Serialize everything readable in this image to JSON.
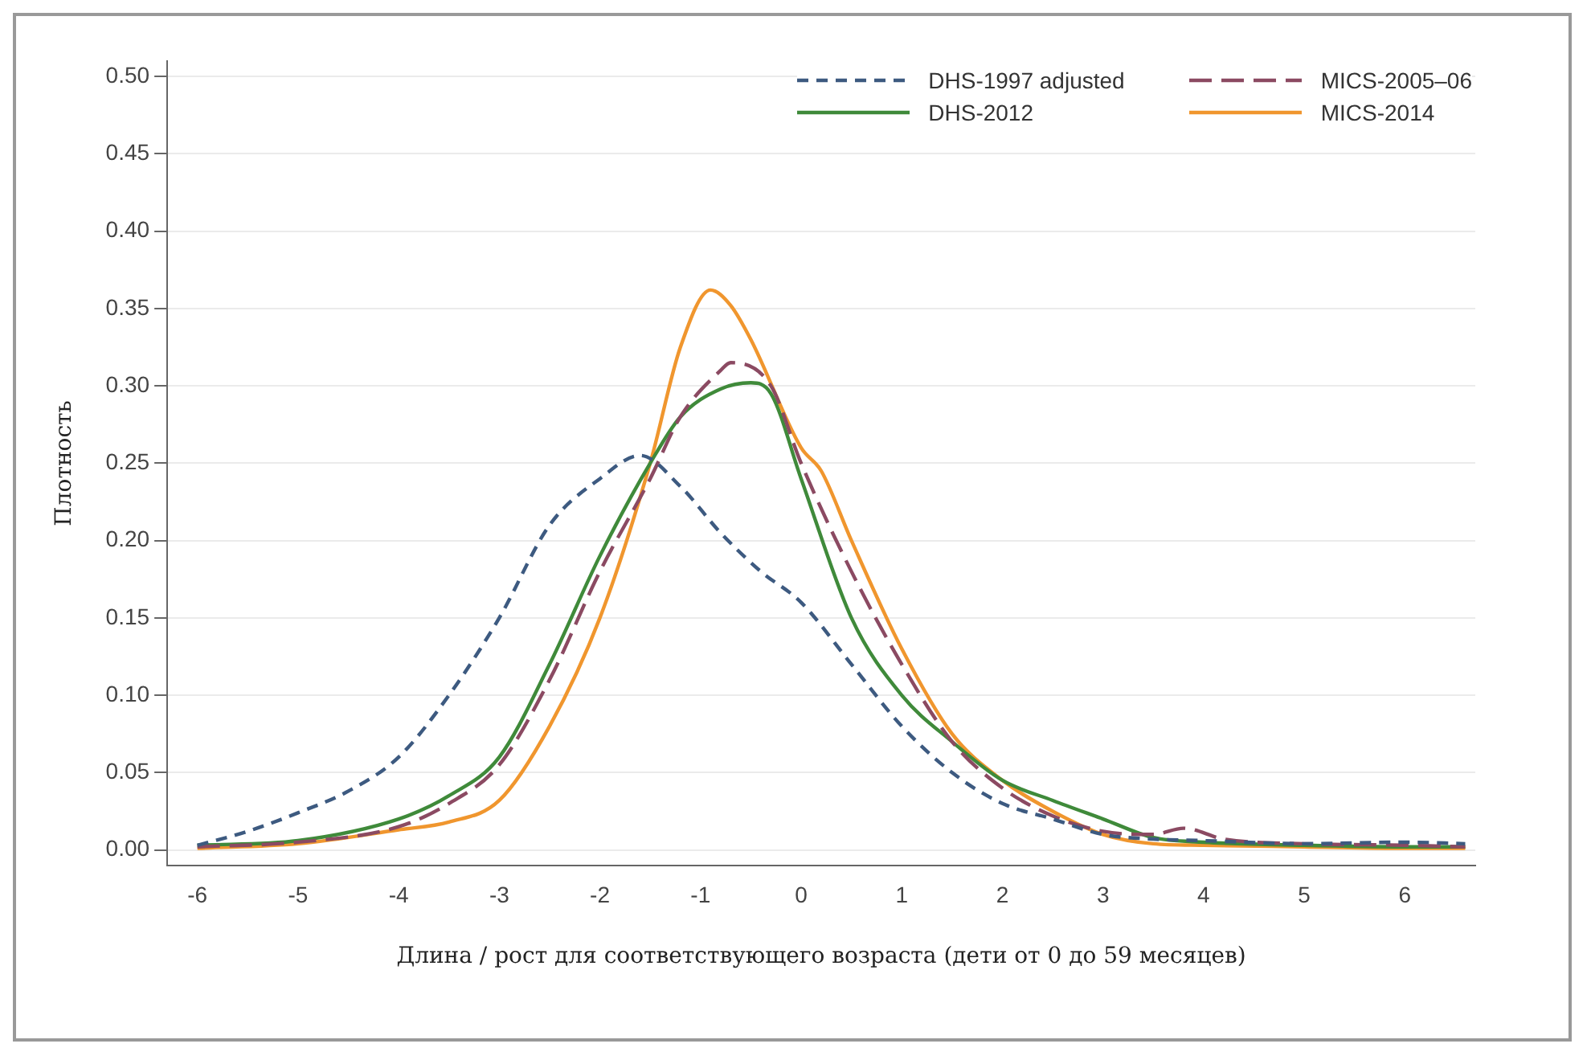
{
  "chart_data": {
    "type": "line",
    "xlabel": "Длина / рост для соответствующего возраста (дети от 0 до 59 месяцев)",
    "ylabel": "Плотность",
    "xlim": [
      -6.3,
      6.7
    ],
    "xticks": [
      -6,
      -5,
      -4,
      -3,
      -2,
      -1,
      0,
      1,
      2,
      3,
      4,
      5,
      6
    ],
    "ylim": [
      -0.01,
      0.51
    ],
    "yticks": [
      {
        "value": 0,
        "label": "0.00"
      },
      {
        "value": 0.05,
        "label": "0.05"
      },
      {
        "value": 0.1,
        "label": "0.10"
      },
      {
        "value": 0.15,
        "label": "0.15"
      },
      {
        "value": 0.2,
        "label": "0.20"
      },
      {
        "value": 0.25,
        "label": "0.25"
      },
      {
        "value": 0.3,
        "label": "0.30"
      },
      {
        "value": 0.35,
        "label": "0.35"
      },
      {
        "value": 0.4,
        "label": "0.40"
      },
      {
        "value": 0.45,
        "label": "0.45"
      },
      {
        "value": 0.5,
        "label": "0.50"
      }
    ],
    "grid": "y",
    "legend": "top right",
    "marker": "none",
    "series": [
      {
        "name": "DHS-1997 adjusted",
        "color": "#3d5a80",
        "line_style": "dashed",
        "x": [
          -6,
          -5.5,
          -5,
          -4.5,
          -4,
          -3.5,
          -3,
          -2.5,
          -2,
          -1.6,
          -1.2,
          -0.8,
          -0.4,
          0,
          0.5,
          1,
          1.5,
          2,
          2.5,
          3,
          3.5,
          4,
          5,
          6,
          6.6
        ],
        "values": [
          0.003,
          0.012,
          0.024,
          0.038,
          0.06,
          0.1,
          0.15,
          0.21,
          0.24,
          0.255,
          0.235,
          0.205,
          0.18,
          0.16,
          0.12,
          0.08,
          0.05,
          0.03,
          0.02,
          0.01,
          0.007,
          0.006,
          0.004,
          0.005,
          0.004
        ]
      },
      {
        "name": "MICS-2005–06",
        "color": "#8b4a62",
        "line_style": "longdash",
        "x": [
          -6,
          -5,
          -4,
          -3.5,
          -3,
          -2.5,
          -2,
          -1.5,
          -1.2,
          -0.8,
          -0.7,
          -0.3,
          0,
          0.5,
          1,
          1.5,
          2,
          2.5,
          3,
          3.5,
          3.8,
          4.2,
          5,
          6,
          6.6
        ],
        "values": [
          0.002,
          0.005,
          0.015,
          0.03,
          0.055,
          0.11,
          0.18,
          0.24,
          0.28,
          0.31,
          0.315,
          0.3,
          0.25,
          0.18,
          0.12,
          0.07,
          0.04,
          0.022,
          0.012,
          0.01,
          0.014,
          0.007,
          0.004,
          0.003,
          0.002
        ]
      },
      {
        "name": "DHS-2012",
        "color": "#3f8a3a",
        "line_style": "solid",
        "x": [
          -6,
          -5,
          -4,
          -3.5,
          -3,
          -2.5,
          -2,
          -1.5,
          -1.2,
          -0.8,
          -0.5,
          -0.3,
          0,
          0.5,
          1,
          1.5,
          2,
          2.5,
          3,
          3.5,
          4,
          5,
          6,
          6.6
        ],
        "values": [
          0.003,
          0.006,
          0.02,
          0.035,
          0.06,
          0.12,
          0.19,
          0.25,
          0.28,
          0.298,
          0.302,
          0.295,
          0.24,
          0.15,
          0.1,
          0.07,
          0.045,
          0.032,
          0.02,
          0.008,
          0.005,
          0.003,
          0.002,
          0.002
        ]
      },
      {
        "name": "MICS-2014",
        "color": "#f0962e",
        "line_style": "solid",
        "x": [
          -6,
          -5,
          -4,
          -3.5,
          -3,
          -2.5,
          -2,
          -1.5,
          -1.2,
          -0.9,
          -0.7,
          -0.5,
          0,
          0.2,
          0.5,
          1,
          1.5,
          2,
          2.5,
          3,
          3.5,
          4,
          5,
          6,
          6.6
        ],
        "values": [
          0.001,
          0.004,
          0.013,
          0.018,
          0.032,
          0.08,
          0.15,
          0.25,
          0.325,
          0.362,
          0.352,
          0.33,
          0.26,
          0.245,
          0.2,
          0.13,
          0.075,
          0.045,
          0.025,
          0.01,
          0.004,
          0.003,
          0.002,
          0.001,
          0.001
        ]
      }
    ]
  }
}
